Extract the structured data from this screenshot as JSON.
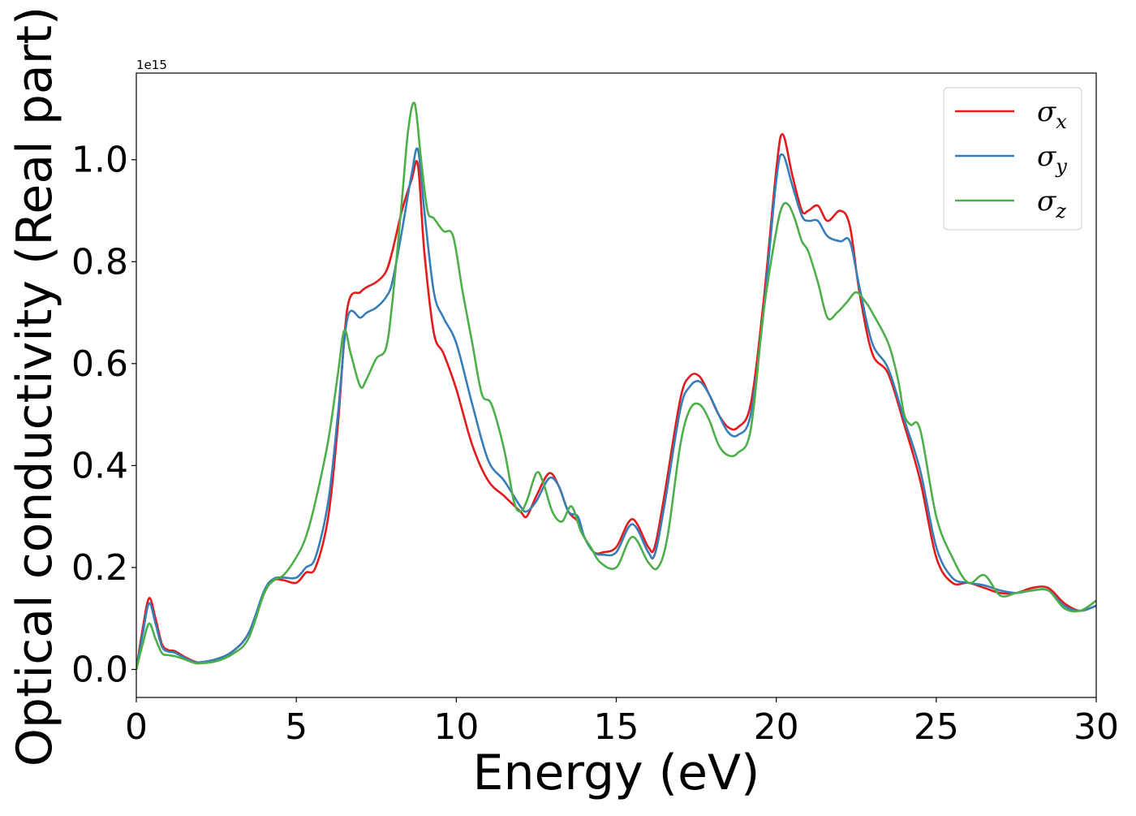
{
  "chart_data": {
    "type": "line",
    "xlabel": "Energy (eV)",
    "ylabel": "Optical conductivity (Real part)",
    "offset_text": "1e15",
    "xlim": [
      0,
      30
    ],
    "ylim": [
      -0.055,
      1.17
    ],
    "y_multiplier": 1000000000000000.0,
    "xticks": [
      0,
      5,
      10,
      15,
      20,
      25,
      30
    ],
    "xtick_labels": [
      "0",
      "5",
      "10",
      "15",
      "20",
      "25",
      "30"
    ],
    "yticks": [
      0.0,
      0.2,
      0.4,
      0.6,
      0.8,
      1.0
    ],
    "ytick_labels": [
      "0.0",
      "0.2",
      "0.4",
      "0.6",
      "0.8",
      "1.0"
    ],
    "grid": false,
    "legend_position": "top-right",
    "series": [
      {
        "name": "σx",
        "legend_base": "σ",
        "legend_sub": "x",
        "color": "#e41a1c",
        "x": [
          0,
          0.2,
          0.4,
          0.6,
          0.8,
          1.0,
          1.2,
          1.5,
          1.8,
          2.0,
          2.5,
          3.0,
          3.5,
          4.0,
          4.3,
          4.6,
          5.0,
          5.3,
          5.6,
          6.0,
          6.3,
          6.6,
          7.0,
          7.2,
          7.5,
          7.8,
          8.0,
          8.3,
          8.6,
          8.8,
          9.0,
          9.3,
          9.6,
          10.0,
          10.5,
          11.0,
          11.5,
          12.0,
          12.2,
          12.5,
          12.9,
          13.2,
          13.5,
          13.8,
          14.0,
          14.3,
          14.6,
          15.0,
          15.5,
          16.0,
          16.2,
          16.5,
          17.0,
          17.3,
          17.6,
          17.9,
          18.2,
          18.5,
          18.8,
          19.2,
          19.6,
          20.0,
          20.2,
          20.5,
          20.8,
          21.0,
          21.3,
          21.6,
          22.0,
          22.3,
          22.6,
          23.0,
          23.5,
          24.0,
          24.5,
          25.0,
          25.5,
          26.0,
          26.5,
          27.0,
          27.5,
          28.0,
          28.5,
          29.0,
          29.5,
          30.0
        ],
        "values": [
          0.0,
          0.08,
          0.14,
          0.1,
          0.05,
          0.038,
          0.036,
          0.025,
          0.016,
          0.014,
          0.02,
          0.035,
          0.07,
          0.15,
          0.175,
          0.175,
          0.17,
          0.19,
          0.2,
          0.3,
          0.48,
          0.71,
          0.74,
          0.75,
          0.76,
          0.78,
          0.82,
          0.9,
          0.96,
          0.99,
          0.82,
          0.66,
          0.62,
          0.55,
          0.44,
          0.37,
          0.34,
          0.31,
          0.3,
          0.34,
          0.385,
          0.36,
          0.31,
          0.29,
          0.26,
          0.23,
          0.23,
          0.24,
          0.295,
          0.24,
          0.24,
          0.34,
          0.53,
          0.575,
          0.575,
          0.54,
          0.5,
          0.475,
          0.475,
          0.52,
          0.72,
          0.98,
          1.05,
          0.97,
          0.9,
          0.9,
          0.91,
          0.88,
          0.9,
          0.87,
          0.74,
          0.62,
          0.58,
          0.48,
          0.37,
          0.22,
          0.17,
          0.17,
          0.16,
          0.15,
          0.15,
          0.16,
          0.16,
          0.13,
          0.115,
          0.125
        ]
      },
      {
        "name": "σy",
        "legend_base": "σ",
        "legend_sub": "y",
        "color": "#377eb8",
        "x": [
          0,
          0.2,
          0.4,
          0.6,
          0.8,
          1.0,
          1.2,
          1.5,
          1.8,
          2.0,
          2.5,
          3.0,
          3.5,
          4.0,
          4.3,
          4.6,
          5.0,
          5.3,
          5.6,
          6.0,
          6.3,
          6.6,
          7.0,
          7.2,
          7.5,
          7.8,
          8.0,
          8.3,
          8.6,
          8.8,
          9.0,
          9.3,
          9.6,
          10.0,
          10.5,
          11.0,
          11.5,
          12.0,
          12.2,
          12.5,
          12.9,
          13.2,
          13.5,
          13.8,
          14.0,
          14.3,
          14.6,
          15.0,
          15.5,
          16.0,
          16.2,
          16.5,
          17.0,
          17.3,
          17.6,
          17.9,
          18.2,
          18.5,
          18.8,
          19.2,
          19.6,
          20.0,
          20.2,
          20.5,
          20.8,
          21.0,
          21.3,
          21.6,
          22.0,
          22.3,
          22.6,
          23.0,
          23.5,
          24.0,
          24.5,
          25.0,
          25.5,
          26.0,
          26.5,
          27.0,
          27.5,
          28.0,
          28.5,
          29.0,
          29.5,
          30.0
        ],
        "values": [
          0.0,
          0.07,
          0.13,
          0.09,
          0.045,
          0.035,
          0.033,
          0.023,
          0.015,
          0.014,
          0.02,
          0.035,
          0.07,
          0.155,
          0.178,
          0.18,
          0.18,
          0.2,
          0.22,
          0.33,
          0.5,
          0.69,
          0.69,
          0.7,
          0.71,
          0.73,
          0.76,
          0.86,
          0.97,
          1.02,
          0.9,
          0.74,
          0.69,
          0.64,
          0.52,
          0.41,
          0.37,
          0.32,
          0.31,
          0.33,
          0.375,
          0.36,
          0.31,
          0.3,
          0.26,
          0.23,
          0.225,
          0.23,
          0.285,
          0.23,
          0.225,
          0.32,
          0.51,
          0.555,
          0.565,
          0.54,
          0.5,
          0.465,
          0.46,
          0.5,
          0.7,
          0.96,
          1.01,
          0.95,
          0.89,
          0.88,
          0.88,
          0.85,
          0.84,
          0.84,
          0.75,
          0.64,
          0.59,
          0.49,
          0.39,
          0.24,
          0.18,
          0.17,
          0.165,
          0.155,
          0.15,
          0.155,
          0.155,
          0.125,
          0.115,
          0.125
        ]
      },
      {
        "name": "σz",
        "legend_base": "σ",
        "legend_sub": "z",
        "color": "#4daf4a",
        "x": [
          0,
          0.2,
          0.4,
          0.6,
          0.8,
          1.0,
          1.2,
          1.5,
          1.8,
          2.0,
          2.5,
          3.0,
          3.5,
          4.0,
          4.3,
          4.6,
          5.0,
          5.3,
          5.6,
          6.0,
          6.3,
          6.5,
          6.7,
          7.0,
          7.2,
          7.5,
          7.8,
          8.0,
          8.3,
          8.5,
          8.7,
          8.9,
          9.1,
          9.3,
          9.6,
          9.9,
          10.2,
          10.5,
          10.8,
          11.1,
          11.5,
          11.8,
          12.0,
          12.2,
          12.5,
          12.7,
          13.0,
          13.3,
          13.6,
          13.9,
          14.2,
          14.5,
          15.0,
          15.5,
          16.0,
          16.3,
          16.6,
          17.0,
          17.3,
          17.6,
          17.9,
          18.2,
          18.5,
          18.8,
          19.2,
          19.6,
          20.0,
          20.2,
          20.4,
          20.6,
          20.8,
          21.0,
          21.3,
          21.6,
          21.9,
          22.2,
          22.5,
          22.8,
          23.0,
          23.5,
          23.8,
          24.0,
          24.2,
          24.5,
          25.0,
          25.5,
          26.0,
          26.5,
          27.0,
          27.5,
          28.0,
          28.5,
          29.0,
          29.5,
          30.0
        ],
        "values": [
          0.0,
          0.05,
          0.09,
          0.06,
          0.032,
          0.028,
          0.026,
          0.02,
          0.013,
          0.012,
          0.016,
          0.03,
          0.06,
          0.15,
          0.175,
          0.185,
          0.22,
          0.26,
          0.33,
          0.45,
          0.58,
          0.665,
          0.62,
          0.555,
          0.57,
          0.61,
          0.63,
          0.72,
          0.92,
          1.06,
          1.11,
          1.0,
          0.9,
          0.885,
          0.86,
          0.85,
          0.74,
          0.64,
          0.54,
          0.52,
          0.43,
          0.33,
          0.31,
          0.33,
          0.385,
          0.37,
          0.31,
          0.29,
          0.32,
          0.27,
          0.24,
          0.21,
          0.2,
          0.26,
          0.21,
          0.2,
          0.26,
          0.44,
          0.51,
          0.52,
          0.49,
          0.44,
          0.42,
          0.425,
          0.47,
          0.7,
          0.86,
          0.91,
          0.91,
          0.88,
          0.84,
          0.82,
          0.76,
          0.69,
          0.7,
          0.72,
          0.74,
          0.72,
          0.7,
          0.64,
          0.57,
          0.5,
          0.48,
          0.47,
          0.3,
          0.22,
          0.17,
          0.185,
          0.145,
          0.15,
          0.155,
          0.155,
          0.12,
          0.115,
          0.135
        ]
      }
    ]
  }
}
